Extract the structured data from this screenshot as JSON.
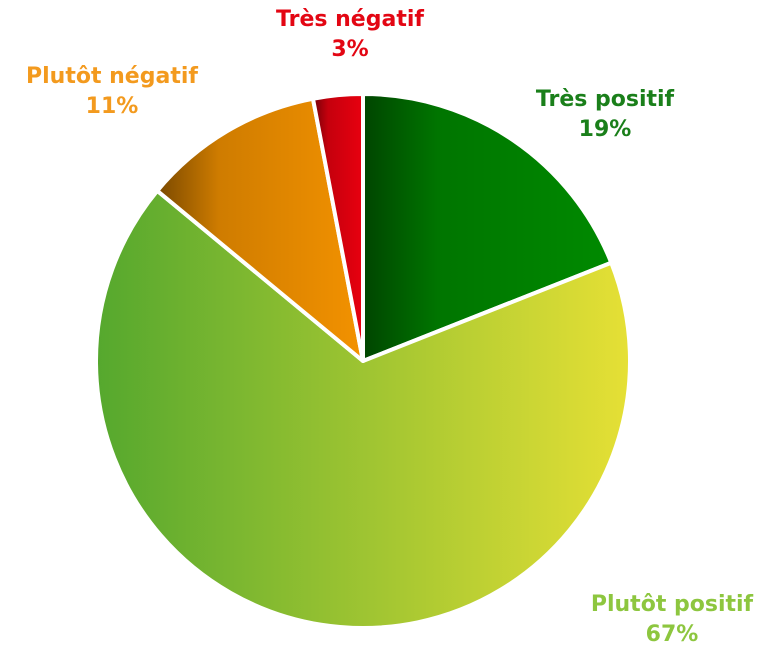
{
  "chart_data": {
    "type": "pie",
    "categories": [
      "Très positif",
      "Plutôt positif",
      "Plutôt négatif",
      "Très négatif"
    ],
    "values": [
      19,
      67,
      11,
      3
    ],
    "value_labels": [
      "19%",
      "67%",
      "11%",
      "3%"
    ],
    "colors": [
      "#008a00",
      "#b8cc34",
      "#f39200",
      "#e8000f"
    ],
    "label_colors": [
      "#1a7f1a",
      "#8dc63f",
      "#f39a1e",
      "#e30613"
    ]
  }
}
